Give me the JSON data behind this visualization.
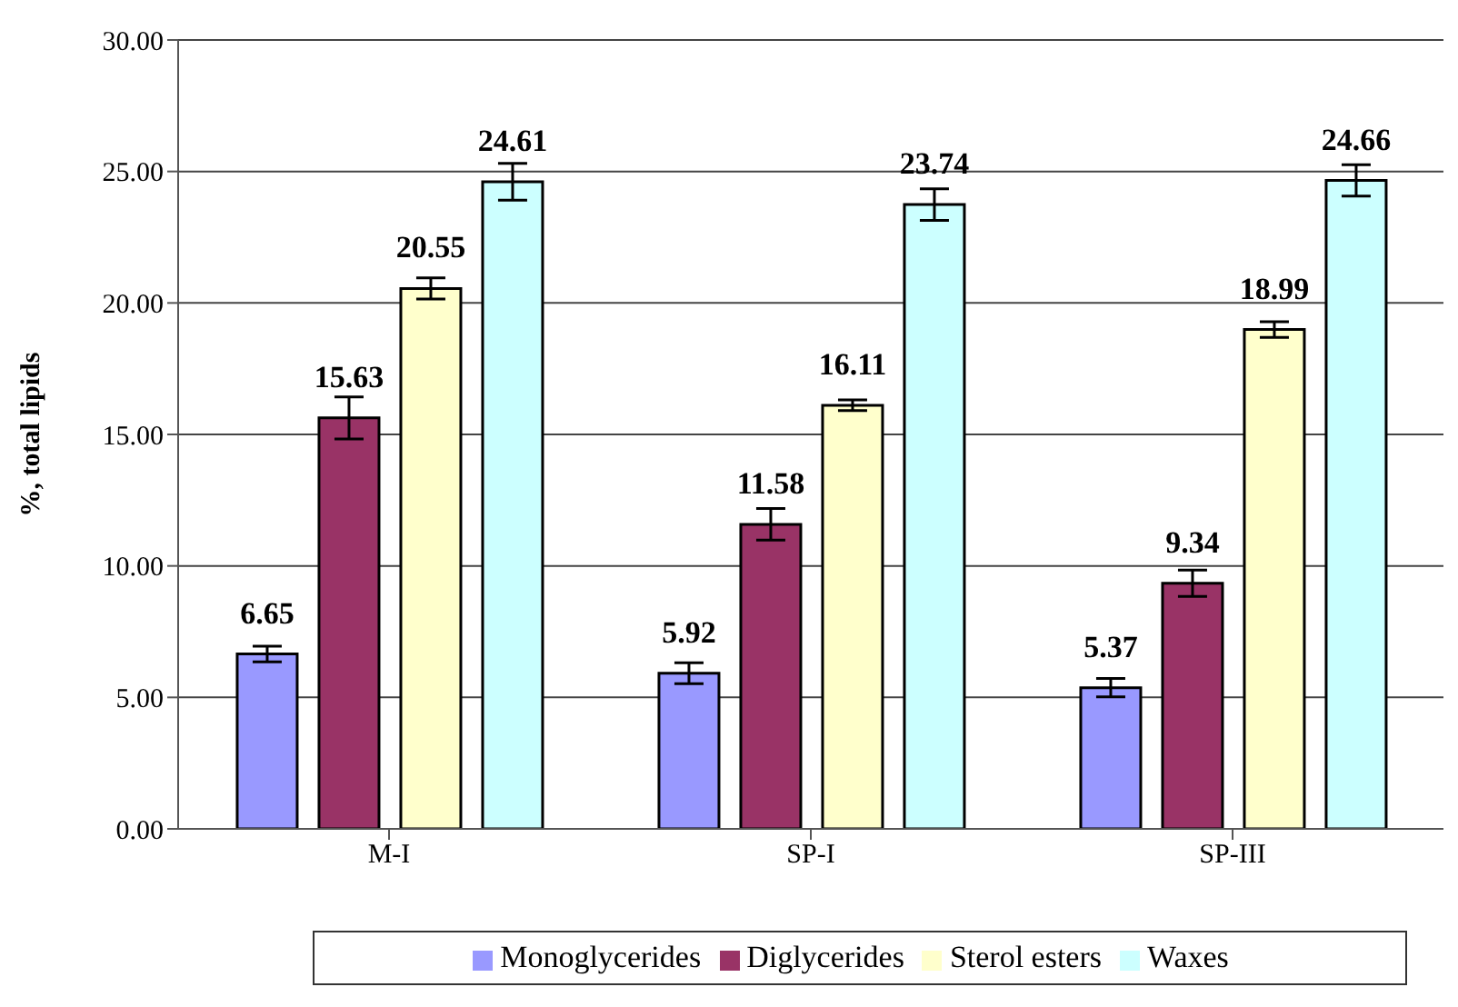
{
  "chart_data": {
    "type": "bar",
    "ylabel": "%, total lipids",
    "categories": [
      "M-I",
      "SP-I",
      "SP-III"
    ],
    "series": [
      {
        "name": "Monoglycerides",
        "color": "#9999ff",
        "values": [
          6.65,
          5.92,
          5.37
        ],
        "errors": [
          0.3,
          0.4,
          0.35
        ]
      },
      {
        "name": "Diglycerides",
        "color": "#993366",
        "values": [
          15.63,
          11.58,
          9.34
        ],
        "errors": [
          0.8,
          0.6,
          0.5
        ]
      },
      {
        "name": "Sterol esters",
        "color": "#ffffcc",
        "values": [
          20.55,
          16.11,
          18.99
        ],
        "errors": [
          0.4,
          0.2,
          0.3
        ]
      },
      {
        "name": "Waxes",
        "color": "#ccffff",
        "values": [
          24.61,
          23.74,
          24.66
        ],
        "errors": [
          0.7,
          0.6,
          0.6
        ]
      }
    ],
    "ylim": [
      0,
      30
    ],
    "yticks": [
      {
        "value": 0,
        "label": "0.00"
      },
      {
        "value": 5,
        "label": "5.00"
      },
      {
        "value": 10,
        "label": "10.00"
      },
      {
        "value": 15,
        "label": "15.00"
      },
      {
        "value": 20,
        "label": "20.00"
      },
      {
        "value": 25,
        "label": "25.00"
      },
      {
        "value": 30,
        "label": "30.00"
      }
    ],
    "grid": "y",
    "legend": "bottom",
    "data_labels": true
  }
}
